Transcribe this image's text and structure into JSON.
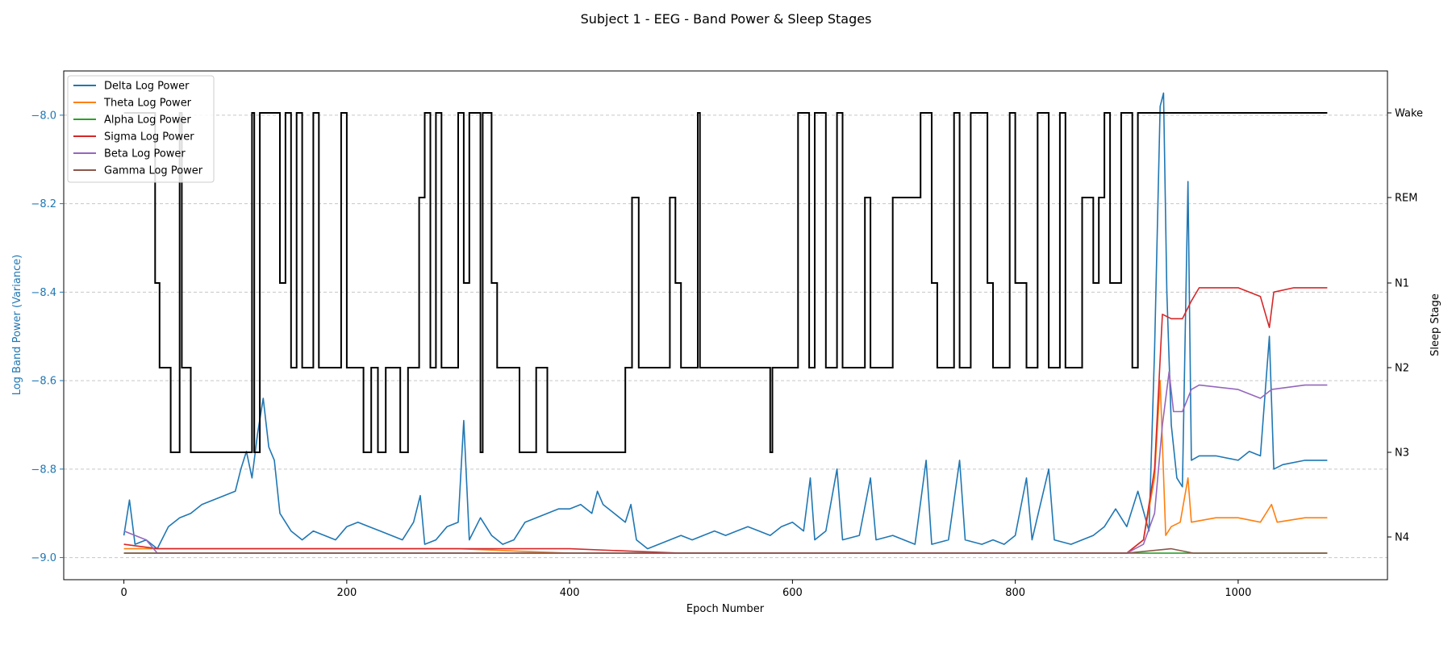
{
  "chart_data": {
    "type": "line",
    "title": "Subject 1 - EEG - Band Power & Sleep Stages",
    "xlabel": "Epoch Number",
    "ylabel_left": "Log Band Power (Variance)",
    "ylabel_right": "Sleep Stage",
    "xlim": [
      -54,
      1134
    ],
    "ylim_left": [
      -9.05,
      -7.9
    ],
    "x_ticks": [
      0,
      200,
      400,
      600,
      800,
      1000
    ],
    "y_ticks_left": [
      -9.0,
      -8.8,
      -8.6,
      -8.4,
      -8.2,
      -8.0
    ],
    "y_tick_labels_left": [
      "−9.0",
      "−8.8",
      "−8.6",
      "−8.4",
      "−8.2",
      "−8.0"
    ],
    "y_ticks_right": [
      "Wake",
      "REM",
      "N1",
      "N2",
      "N3",
      "N4"
    ],
    "grid": "horizontal dashed",
    "legend_position": "upper-left",
    "colors": {
      "left_axis": "#1f77b4",
      "delta": "#1f77b4",
      "theta": "#ff7f0e",
      "alpha": "#2ca02c",
      "sigma": "#d62728",
      "beta": "#9467bd",
      "gamma": "#8c564b",
      "sleep_stage": "#000000",
      "grid": "#c8c8c8"
    },
    "series": [
      {
        "name": "Delta Log Power",
        "color": "#1f77b4",
        "points": [
          [
            0,
            -8.95
          ],
          [
            5,
            -8.87
          ],
          [
            10,
            -8.97
          ],
          [
            20,
            -8.96
          ],
          [
            30,
            -8.98
          ],
          [
            40,
            -8.93
          ],
          [
            50,
            -8.91
          ],
          [
            60,
            -8.9
          ],
          [
            70,
            -8.88
          ],
          [
            80,
            -8.87
          ],
          [
            90,
            -8.86
          ],
          [
            100,
            -8.85
          ],
          [
            105,
            -8.8
          ],
          [
            110,
            -8.76
          ],
          [
            115,
            -8.82
          ],
          [
            120,
            -8.72
          ],
          [
            125,
            -8.64
          ],
          [
            130,
            -8.75
          ],
          [
            135,
            -8.78
          ],
          [
            140,
            -8.9
          ],
          [
            150,
            -8.94
          ],
          [
            160,
            -8.96
          ],
          [
            170,
            -8.94
          ],
          [
            180,
            -8.95
          ],
          [
            190,
            -8.96
          ],
          [
            200,
            -8.93
          ],
          [
            210,
            -8.92
          ],
          [
            220,
            -8.93
          ],
          [
            230,
            -8.94
          ],
          [
            240,
            -8.95
          ],
          [
            250,
            -8.96
          ],
          [
            260,
            -8.92
          ],
          [
            266,
            -8.86
          ],
          [
            270,
            -8.97
          ],
          [
            280,
            -8.96
          ],
          [
            290,
            -8.93
          ],
          [
            300,
            -8.92
          ],
          [
            305,
            -8.69
          ],
          [
            310,
            -8.96
          ],
          [
            320,
            -8.91
          ],
          [
            330,
            -8.95
          ],
          [
            340,
            -8.97
          ],
          [
            350,
            -8.96
          ],
          [
            360,
            -8.92
          ],
          [
            370,
            -8.91
          ],
          [
            380,
            -8.9
          ],
          [
            390,
            -8.89
          ],
          [
            400,
            -8.89
          ],
          [
            410,
            -8.88
          ],
          [
            420,
            -8.9
          ],
          [
            425,
            -8.85
          ],
          [
            430,
            -8.88
          ],
          [
            440,
            -8.9
          ],
          [
            450,
            -8.92
          ],
          [
            455,
            -8.88
          ],
          [
            460,
            -8.96
          ],
          [
            470,
            -8.98
          ],
          [
            480,
            -8.97
          ],
          [
            490,
            -8.96
          ],
          [
            500,
            -8.95
          ],
          [
            510,
            -8.96
          ],
          [
            520,
            -8.95
          ],
          [
            530,
            -8.94
          ],
          [
            540,
            -8.95
          ],
          [
            550,
            -8.94
          ],
          [
            560,
            -8.93
          ],
          [
            570,
            -8.94
          ],
          [
            580,
            -8.95
          ],
          [
            590,
            -8.93
          ],
          [
            600,
            -8.92
          ],
          [
            610,
            -8.94
          ],
          [
            616,
            -8.82
          ],
          [
            620,
            -8.96
          ],
          [
            630,
            -8.94
          ],
          [
            640,
            -8.8
          ],
          [
            645,
            -8.96
          ],
          [
            660,
            -8.95
          ],
          [
            670,
            -8.82
          ],
          [
            675,
            -8.96
          ],
          [
            690,
            -8.95
          ],
          [
            700,
            -8.96
          ],
          [
            710,
            -8.97
          ],
          [
            720,
            -8.78
          ],
          [
            725,
            -8.97
          ],
          [
            740,
            -8.96
          ],
          [
            750,
            -8.78
          ],
          [
            755,
            -8.96
          ],
          [
            770,
            -8.97
          ],
          [
            780,
            -8.96
          ],
          [
            790,
            -8.97
          ],
          [
            800,
            -8.95
          ],
          [
            810,
            -8.82
          ],
          [
            815,
            -8.96
          ],
          [
            830,
            -8.8
          ],
          [
            835,
            -8.96
          ],
          [
            850,
            -8.97
          ],
          [
            860,
            -8.96
          ],
          [
            870,
            -8.95
          ],
          [
            880,
            -8.93
          ],
          [
            890,
            -8.89
          ],
          [
            900,
            -8.93
          ],
          [
            910,
            -8.85
          ],
          [
            920,
            -8.94
          ],
          [
            925,
            -8.53
          ],
          [
            930,
            -7.98
          ],
          [
            933,
            -7.95
          ],
          [
            936,
            -8.4
          ],
          [
            940,
            -8.7
          ],
          [
            945,
            -8.82
          ],
          [
            950,
            -8.84
          ],
          [
            955,
            -8.15
          ],
          [
            958,
            -8.78
          ],
          [
            965,
            -8.77
          ],
          [
            980,
            -8.77
          ],
          [
            1000,
            -8.78
          ],
          [
            1010,
            -8.76
          ],
          [
            1020,
            -8.77
          ],
          [
            1028,
            -8.5
          ],
          [
            1032,
            -8.8
          ],
          [
            1040,
            -8.79
          ],
          [
            1060,
            -8.78
          ],
          [
            1080,
            -8.78
          ]
        ]
      },
      {
        "name": "Theta Log Power",
        "color": "#ff7f0e",
        "points": [
          [
            0,
            -8.98
          ],
          [
            50,
            -8.98
          ],
          [
            100,
            -8.98
          ],
          [
            150,
            -8.98
          ],
          [
            200,
            -8.98
          ],
          [
            300,
            -8.98
          ],
          [
            400,
            -8.99
          ],
          [
            500,
            -8.99
          ],
          [
            600,
            -8.99
          ],
          [
            700,
            -8.99
          ],
          [
            800,
            -8.99
          ],
          [
            900,
            -8.99
          ],
          [
            915,
            -8.96
          ],
          [
            925,
            -8.82
          ],
          [
            930,
            -8.6
          ],
          [
            935,
            -8.95
          ],
          [
            940,
            -8.93
          ],
          [
            948,
            -8.92
          ],
          [
            955,
            -8.82
          ],
          [
            958,
            -8.92
          ],
          [
            980,
            -8.91
          ],
          [
            1000,
            -8.91
          ],
          [
            1020,
            -8.92
          ],
          [
            1030,
            -8.88
          ],
          [
            1035,
            -8.92
          ],
          [
            1060,
            -8.91
          ],
          [
            1080,
            -8.91
          ]
        ]
      },
      {
        "name": "Alpha Log Power",
        "color": "#2ca02c",
        "points": [
          [
            0,
            -8.99
          ],
          [
            300,
            -8.99
          ],
          [
            600,
            -8.99
          ],
          [
            900,
            -8.99
          ],
          [
            1080,
            -8.99
          ]
        ]
      },
      {
        "name": "Sigma Log Power",
        "color": "#d62728",
        "points": [
          [
            0,
            -8.97
          ],
          [
            30,
            -8.98
          ],
          [
            100,
            -8.98
          ],
          [
            200,
            -8.98
          ],
          [
            300,
            -8.98
          ],
          [
            400,
            -8.98
          ],
          [
            500,
            -8.99
          ],
          [
            600,
            -8.99
          ],
          [
            700,
            -8.99
          ],
          [
            800,
            -8.99
          ],
          [
            900,
            -8.99
          ],
          [
            915,
            -8.96
          ],
          [
            925,
            -8.8
          ],
          [
            932,
            -8.45
          ],
          [
            940,
            -8.46
          ],
          [
            950,
            -8.46
          ],
          [
            958,
            -8.42
          ],
          [
            965,
            -8.39
          ],
          [
            980,
            -8.39
          ],
          [
            1000,
            -8.39
          ],
          [
            1020,
            -8.41
          ],
          [
            1028,
            -8.48
          ],
          [
            1032,
            -8.4
          ],
          [
            1050,
            -8.39
          ],
          [
            1080,
            -8.39
          ]
        ]
      },
      {
        "name": "Beta Log Power",
        "color": "#9467bd",
        "points": [
          [
            0,
            -8.94
          ],
          [
            20,
            -8.96
          ],
          [
            30,
            -8.99
          ],
          [
            100,
            -8.99
          ],
          [
            200,
            -8.99
          ],
          [
            300,
            -8.99
          ],
          [
            400,
            -8.99
          ],
          [
            500,
            -8.99
          ],
          [
            600,
            -8.99
          ],
          [
            700,
            -8.99
          ],
          [
            800,
            -8.99
          ],
          [
            900,
            -8.99
          ],
          [
            915,
            -8.97
          ],
          [
            925,
            -8.9
          ],
          [
            932,
            -8.7
          ],
          [
            938,
            -8.58
          ],
          [
            942,
            -8.67
          ],
          [
            950,
            -8.67
          ],
          [
            958,
            -8.62
          ],
          [
            965,
            -8.61
          ],
          [
            1000,
            -8.62
          ],
          [
            1020,
            -8.64
          ],
          [
            1030,
            -8.62
          ],
          [
            1060,
            -8.61
          ],
          [
            1080,
            -8.61
          ]
        ]
      },
      {
        "name": "Gamma Log Power",
        "color": "#8c564b",
        "points": [
          [
            0,
            -8.99
          ],
          [
            300,
            -8.99
          ],
          [
            600,
            -8.99
          ],
          [
            900,
            -8.99
          ],
          [
            940,
            -8.98
          ],
          [
            960,
            -8.99
          ],
          [
            1080,
            -8.99
          ]
        ]
      }
    ],
    "sleep_stage_series": {
      "name": "Sleep Stage",
      "color": "#000000",
      "stage_order": [
        "Wake",
        "REM",
        "N1",
        "N2",
        "N3",
        "N4"
      ],
      "steps": [
        [
          0,
          "Wake"
        ],
        [
          28,
          "N1"
        ],
        [
          32,
          "N2"
        ],
        [
          42,
          "N3"
        ],
        [
          50,
          "Wake"
        ],
        [
          52,
          "N2"
        ],
        [
          60,
          "N3"
        ],
        [
          75,
          "N3"
        ],
        [
          90,
          "N3"
        ],
        [
          115,
          "Wake"
        ],
        [
          117,
          "N3"
        ],
        [
          122,
          "Wake"
        ],
        [
          140,
          "N1"
        ],
        [
          145,
          "Wake"
        ],
        [
          150,
          "N2"
        ],
        [
          155,
          "Wake"
        ],
        [
          160,
          "N2"
        ],
        [
          170,
          "Wake"
        ],
        [
          175,
          "N2"
        ],
        [
          195,
          "Wake"
        ],
        [
          200,
          "N2"
        ],
        [
          215,
          "N3"
        ],
        [
          222,
          "N2"
        ],
        [
          228,
          "N3"
        ],
        [
          235,
          "N2"
        ],
        [
          248,
          "N3"
        ],
        [
          255,
          "N2"
        ],
        [
          265,
          "REM"
        ],
        [
          270,
          "Wake"
        ],
        [
          275,
          "N2"
        ],
        [
          280,
          "Wake"
        ],
        [
          285,
          "N2"
        ],
        [
          300,
          "Wake"
        ],
        [
          305,
          "N1"
        ],
        [
          310,
          "Wake"
        ],
        [
          320,
          "N3"
        ],
        [
          322,
          "Wake"
        ],
        [
          330,
          "N1"
        ],
        [
          335,
          "N2"
        ],
        [
          355,
          "N3"
        ],
        [
          370,
          "N2"
        ],
        [
          380,
          "N3"
        ],
        [
          400,
          "N3"
        ],
        [
          425,
          "N3"
        ],
        [
          450,
          "N2"
        ],
        [
          456,
          "REM"
        ],
        [
          462,
          "N2"
        ],
        [
          490,
          "REM"
        ],
        [
          495,
          "N1"
        ],
        [
          500,
          "N2"
        ],
        [
          515,
          "Wake"
        ],
        [
          517,
          "N2"
        ],
        [
          580,
          "N3"
        ],
        [
          582,
          "N2"
        ],
        [
          605,
          "Wake"
        ],
        [
          615,
          "N2"
        ],
        [
          620,
          "Wake"
        ],
        [
          630,
          "N2"
        ],
        [
          640,
          "Wake"
        ],
        [
          645,
          "N2"
        ],
        [
          665,
          "REM"
        ],
        [
          670,
          "N2"
        ],
        [
          690,
          "REM"
        ],
        [
          715,
          "Wake"
        ],
        [
          725,
          "N1"
        ],
        [
          730,
          "N2"
        ],
        [
          745,
          "Wake"
        ],
        [
          750,
          "N2"
        ],
        [
          760,
          "Wake"
        ],
        [
          775,
          "N1"
        ],
        [
          780,
          "N2"
        ],
        [
          795,
          "Wake"
        ],
        [
          800,
          "N1"
        ],
        [
          810,
          "N2"
        ],
        [
          820,
          "Wake"
        ],
        [
          830,
          "N2"
        ],
        [
          840,
          "Wake"
        ],
        [
          845,
          "N2"
        ],
        [
          860,
          "REM"
        ],
        [
          870,
          "N1"
        ],
        [
          875,
          "REM"
        ],
        [
          880,
          "Wake"
        ],
        [
          885,
          "N1"
        ],
        [
          895,
          "Wake"
        ],
        [
          905,
          "N2"
        ],
        [
          910,
          "Wake"
        ],
        [
          1080,
          "Wake"
        ]
      ]
    }
  }
}
